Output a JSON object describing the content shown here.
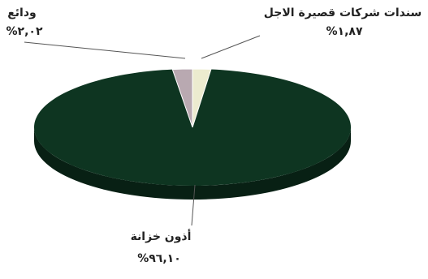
{
  "chart_data": {
    "type": "pie",
    "title": "",
    "series": [
      {
        "label": "أذون خزانة",
        "value": 96.1,
        "value_text": "%٩٦,١٠",
        "color": "#0e3521"
      },
      {
        "label": "ودائع",
        "value": 2.02,
        "value_text": "%٢,٠٢",
        "color": "#b9a9b1"
      },
      {
        "label": "سندات شركات قصيرة الاجل",
        "value": 1.87,
        "value_text": "%١,٨٧",
        "color": "#ecebcf"
      }
    ],
    "legend": "none",
    "style": "3d"
  }
}
